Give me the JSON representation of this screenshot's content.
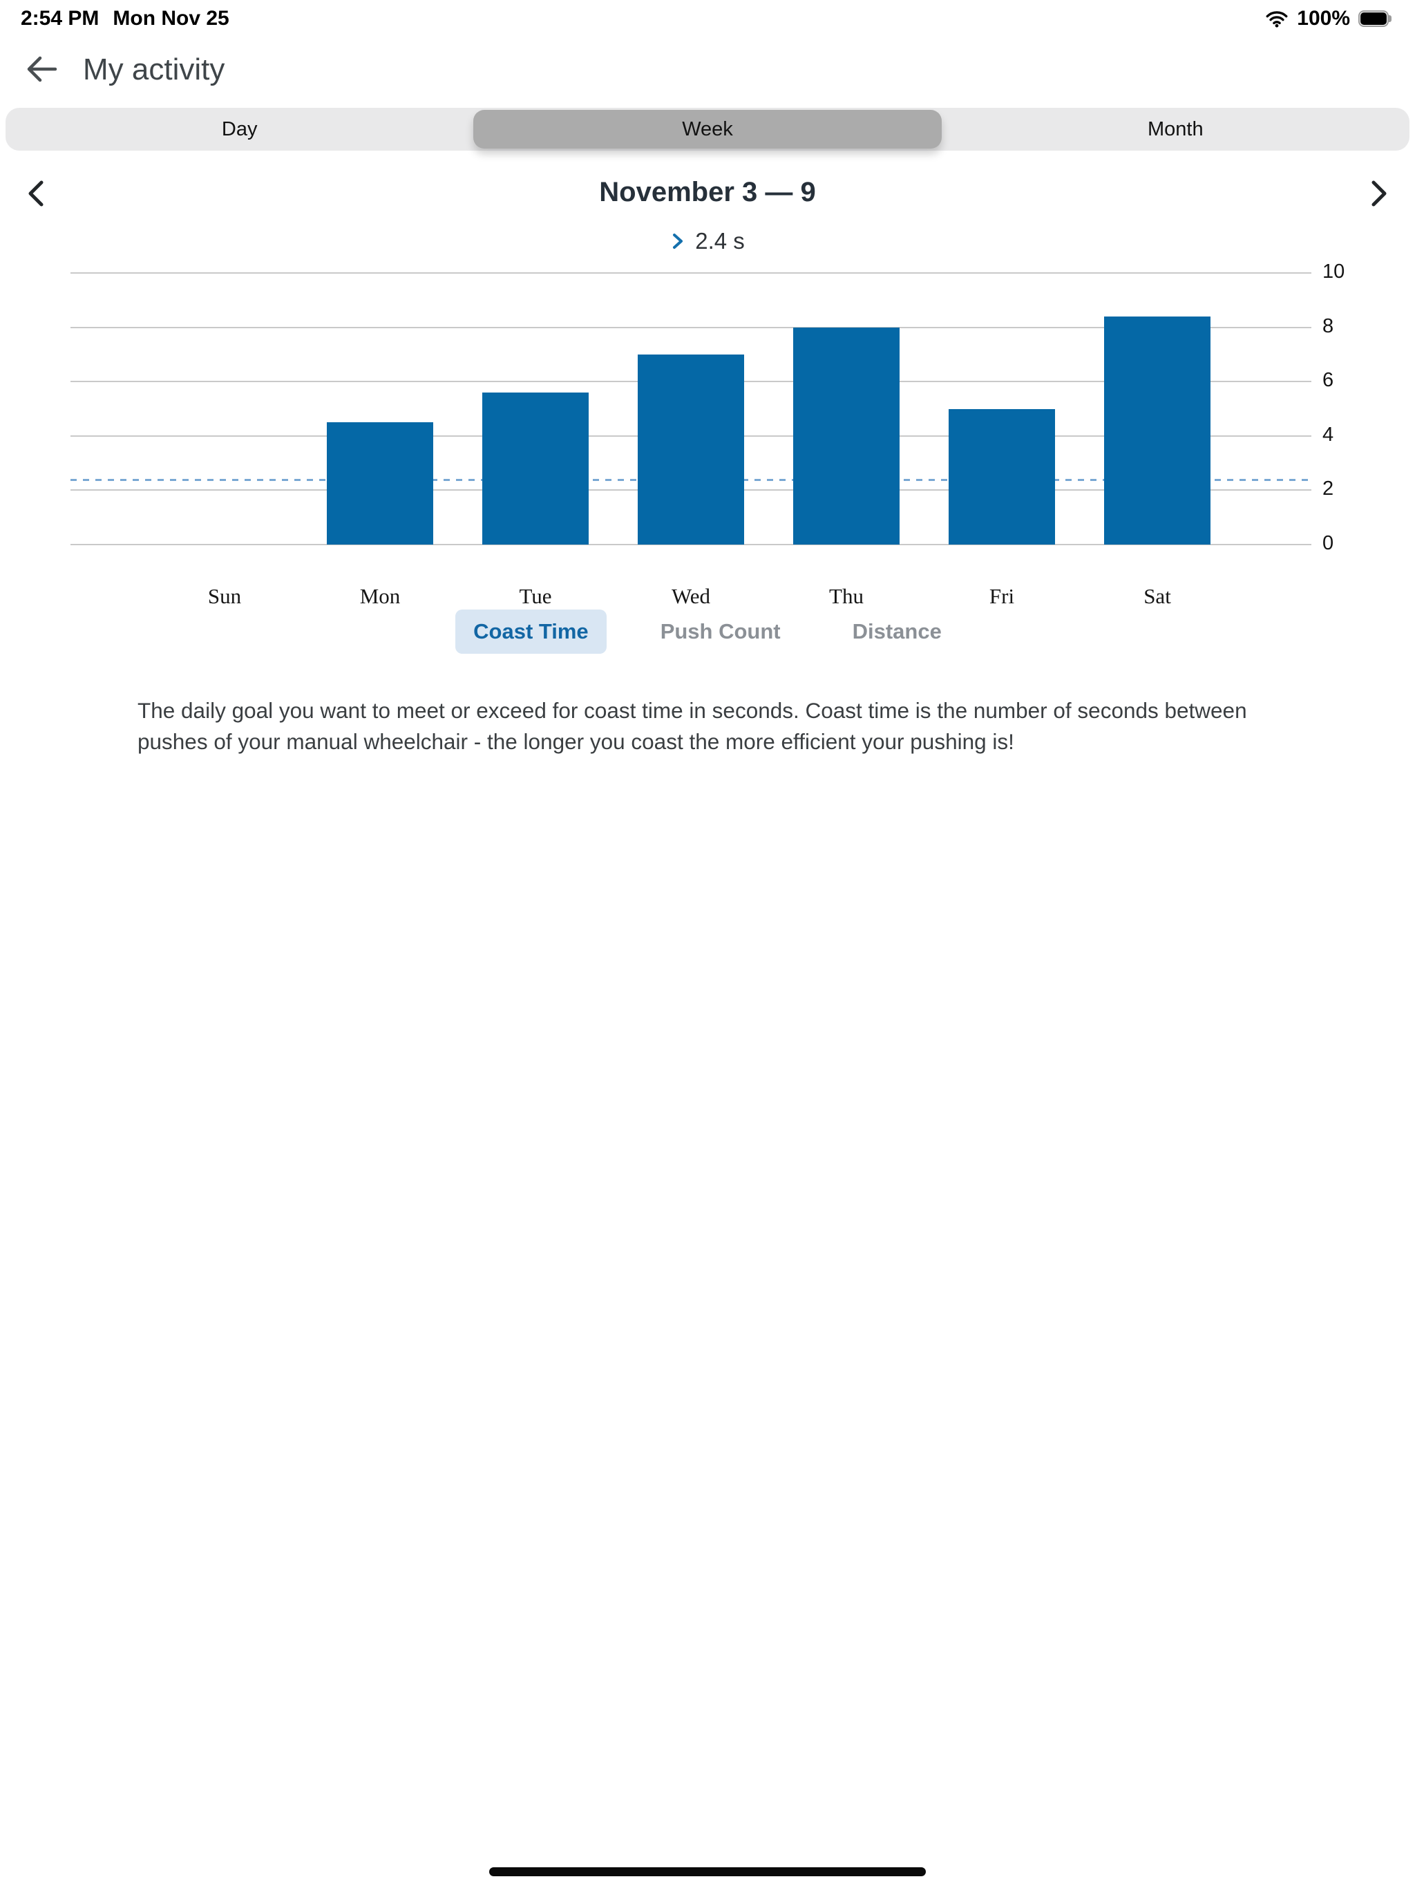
{
  "status_bar": {
    "time": "2:54 PM",
    "date": "Mon Nov 25",
    "battery": "100%"
  },
  "header": {
    "title": "My activity"
  },
  "period_tabs": {
    "items": [
      "Day",
      "Week",
      "Month"
    ],
    "selected": "Week"
  },
  "week_nav": {
    "title": "November 3 — 9"
  },
  "goal": {
    "label": "2.4 s"
  },
  "chart_data": {
    "type": "bar",
    "title": "November 3 — 9",
    "categories": [
      "Sun",
      "Mon",
      "Tue",
      "Wed",
      "Thu",
      "Fri",
      "Sat"
    ],
    "values": [
      0,
      4.5,
      5.6,
      7.0,
      8.0,
      5.0,
      8.4
    ],
    "goal_line": 2.4,
    "goal_label": "2.4 s",
    "xlabel": "",
    "ylabel": "",
    "ylim": [
      0,
      10
    ],
    "yticks": [
      0,
      2,
      4,
      6,
      8,
      10
    ],
    "grid": true,
    "legend_position": "none",
    "bar_color": "#0568a6",
    "goal_line_color": "#79a8d3",
    "gridline_color": "#c9c9c9"
  },
  "metric_tabs": {
    "items": [
      {
        "label": "Coast Time",
        "active": true
      },
      {
        "label": "Push Count",
        "active": false
      },
      {
        "label": "Distance",
        "active": false
      }
    ]
  },
  "description": "The daily goal you want to meet or exceed for coast time in seconds. Coast time is the number of seconds between pushes of your manual wheelchair - the longer you coast the more efficient your pushing is!"
}
